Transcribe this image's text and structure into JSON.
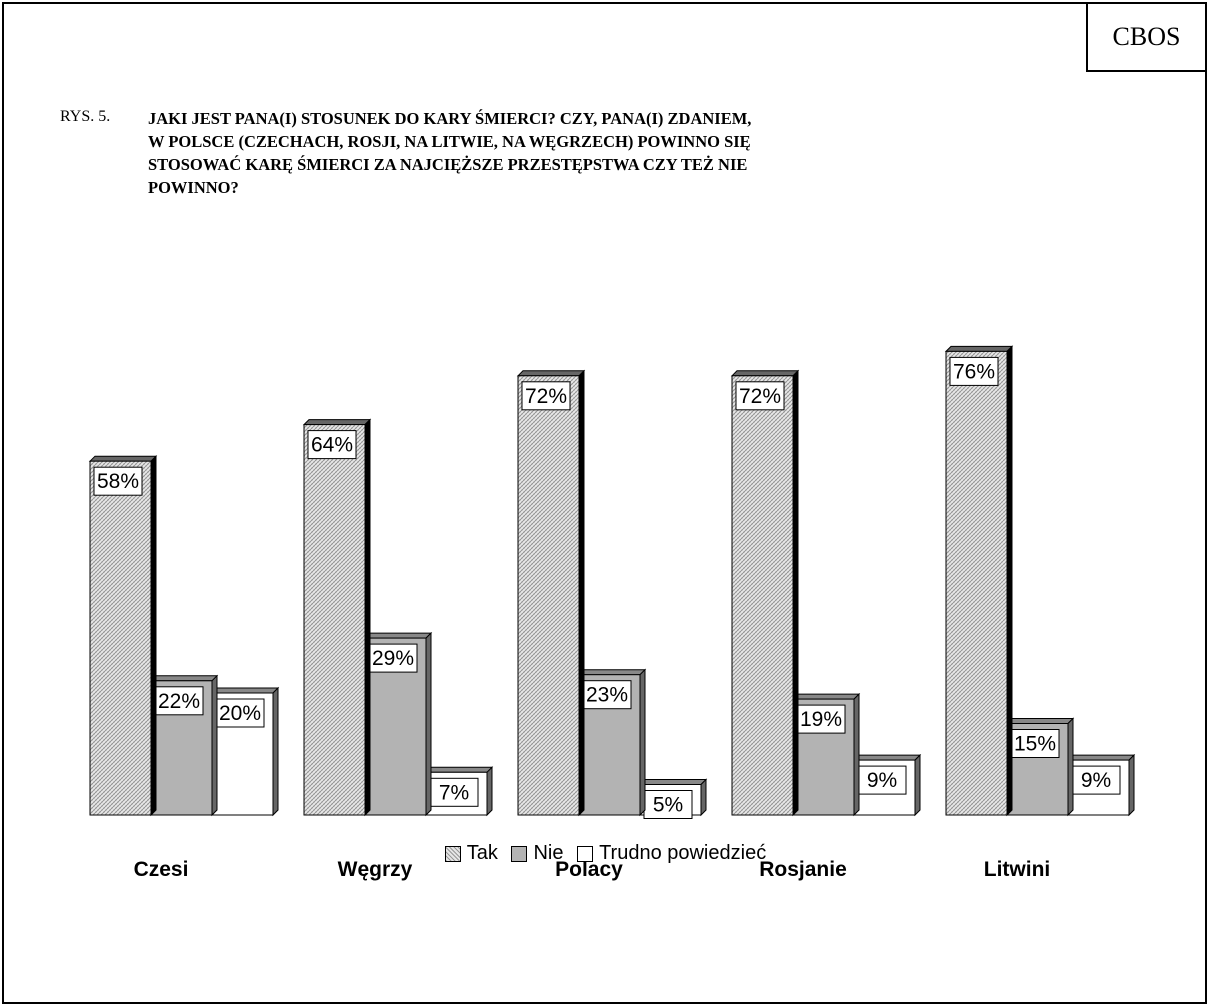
{
  "brand": "CBOS",
  "figure_label": "RYS. 5.",
  "question_lines": [
    "JAKI JEST PANA(I) STOSUNEK DO KARY ŚMIERCI? CZY, PANA(I) ZDANIEM,",
    "W POLSCE (CZECHACH, ROSJI, NA LITWIE,  NA WĘGRZECH) POWINNO SIĘ",
    "STOSOWAĆ KARĘ ŚMIERCI ZA NAJCIĘŻSZE PRZESTĘPSTWA CZY TEŻ NIE",
    "POWINNO?"
  ],
  "legend": [
    "Tak",
    "Nie",
    "Trudno powiedzieć"
  ],
  "chart_data": {
    "type": "bar",
    "categories": [
      "Czesi",
      "Węgrzy",
      "Polacy",
      "Rosjanie",
      "Litwini"
    ],
    "series": [
      {
        "name": "Tak",
        "values": [
          58,
          64,
          72,
          72,
          76
        ],
        "labels": [
          "58%",
          "64%",
          "72%",
          "72%",
          "76%"
        ],
        "color": "#e0e0e0"
      },
      {
        "name": "Nie",
        "values": [
          22,
          29,
          23,
          19,
          15
        ],
        "labels": [
          "22%",
          "29%",
          "23%",
          "19%",
          "15%"
        ],
        "color": "#b3b3b3"
      },
      {
        "name": "Trudno powiedzieć",
        "values": [
          20,
          7,
          5,
          9,
          9
        ],
        "labels": [
          "20%",
          "7%",
          "5%",
          "9%",
          "9%"
        ],
        "color": "#ffffff"
      }
    ],
    "grid": false,
    "legend_position": "bottom"
  }
}
